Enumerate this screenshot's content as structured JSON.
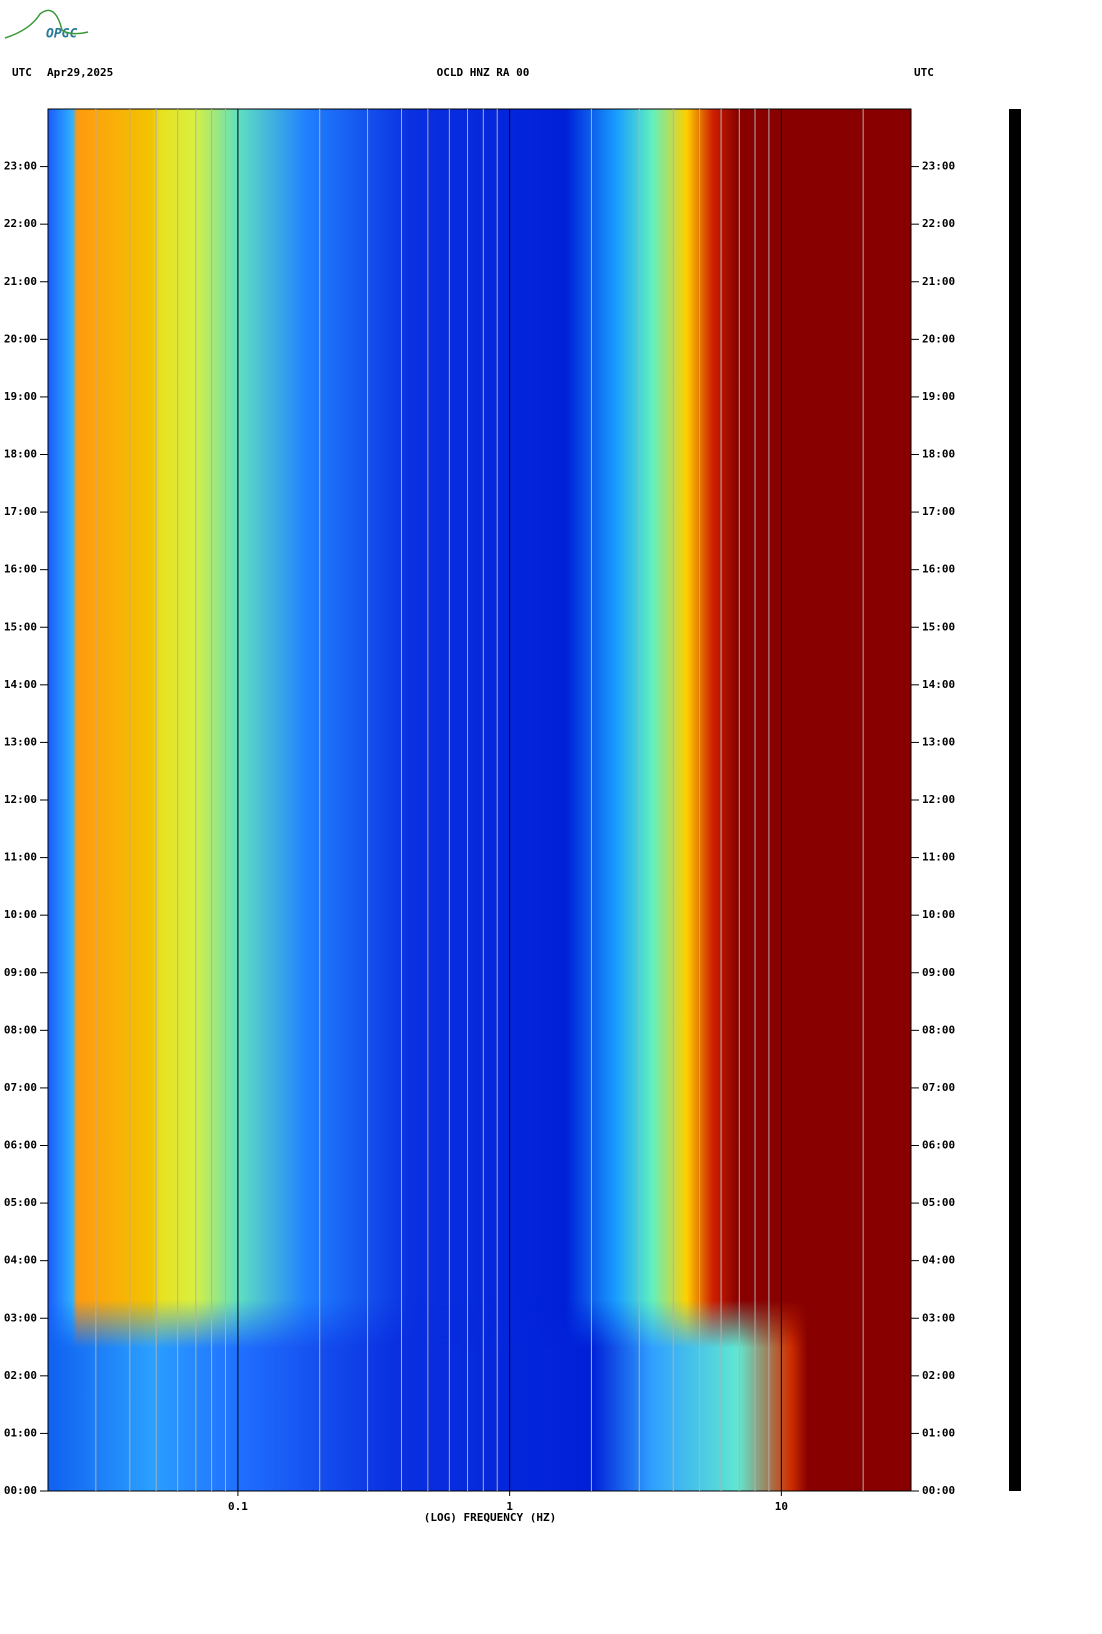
{
  "logo": "OPGC",
  "chart_data": {
    "type": "spectrogram",
    "title": "OCLD HNZ RA 00",
    "left_label": "UTC",
    "date": "Apr29,2025",
    "right_label": "UTC",
    "xlabel": "(LOG) FREQUENCY (HZ)",
    "xscale": "log",
    "xlim": [
      0.02,
      30
    ],
    "xticks": [
      0.1,
      1,
      10
    ],
    "xgrid": [
      0.03,
      0.04,
      0.05,
      0.06,
      0.07,
      0.08,
      0.09,
      0.1,
      0.2,
      0.3,
      0.4,
      0.5,
      0.6,
      0.7,
      0.8,
      0.9,
      1,
      2,
      3,
      4,
      5,
      6,
      7,
      8,
      9,
      10,
      20
    ],
    "ylim": [
      0,
      24
    ],
    "yticks": [
      {
        "value": 0,
        "label": "00:00"
      },
      {
        "value": 1,
        "label": "01:00"
      },
      {
        "value": 2,
        "label": "02:00"
      },
      {
        "value": 3,
        "label": "03:00"
      },
      {
        "value": 4,
        "label": "04:00"
      },
      {
        "value": 5,
        "label": "05:00"
      },
      {
        "value": 6,
        "label": "06:00"
      },
      {
        "value": 7,
        "label": "07:00"
      },
      {
        "value": 8,
        "label": "08:00"
      },
      {
        "value": 9,
        "label": "09:00"
      },
      {
        "value": 10,
        "label": "10:00"
      },
      {
        "value": 11,
        "label": "11:00"
      },
      {
        "value": 12,
        "label": "12:00"
      },
      {
        "value": 13,
        "label": "13:00"
      },
      {
        "value": 14,
        "label": "14:00"
      },
      {
        "value": 15,
        "label": "15:00"
      },
      {
        "value": 16,
        "label": "16:00"
      },
      {
        "value": 17,
        "label": "17:00"
      },
      {
        "value": 18,
        "label": "18:00"
      },
      {
        "value": 19,
        "label": "19:00"
      },
      {
        "value": 20,
        "label": "20:00"
      },
      {
        "value": 21,
        "label": "21:00"
      },
      {
        "value": 22,
        "label": "22:00"
      },
      {
        "value": 23,
        "label": "23:00"
      }
    ]
  }
}
